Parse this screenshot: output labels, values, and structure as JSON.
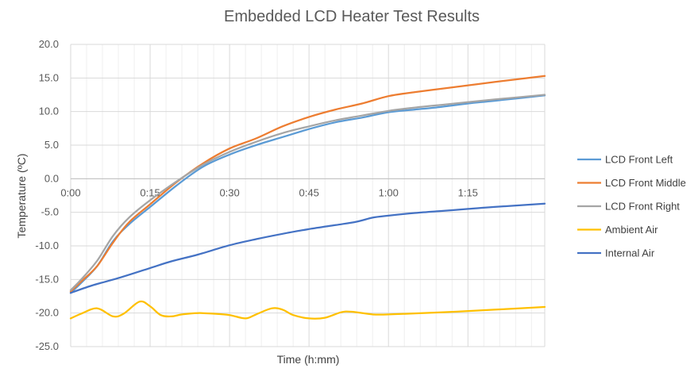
{
  "chart_data": {
    "type": "line",
    "title": "Embedded LCD Heater Test Results",
    "xlabel": "Time (h:mm)",
    "ylabel": "Temperature (ºC)",
    "ylim": [
      -25,
      20
    ],
    "xlim_minutes": [
      0,
      89.5
    ],
    "ytick_step": 5,
    "yticks": [
      "-25.0",
      "-20.0",
      "-15.0",
      "-10.0",
      "-5.0",
      "0.0",
      "5.0",
      "10.0",
      "15.0",
      "20.0"
    ],
    "xticks": [
      {
        "label": "0:00",
        "minutes": 0
      },
      {
        "label": "0:15",
        "minutes": 15
      },
      {
        "label": "0:30",
        "minutes": 30
      },
      {
        "label": "0:45",
        "minutes": 45
      },
      {
        "label": "1:00",
        "minutes": 60
      },
      {
        "label": "1:15",
        "minutes": 75
      }
    ],
    "grid": {
      "major_x": true,
      "major_y": true,
      "minor_x": true
    },
    "legend_position": "right",
    "series": [
      {
        "name": "LCD Front Left",
        "color": "#5B9BD5",
        "points": [
          [
            0,
            -17.0
          ],
          [
            2,
            -15.5
          ],
          [
            5,
            -13.0
          ],
          [
            8,
            -9.3
          ],
          [
            11,
            -6.8
          ],
          [
            15,
            -4.2
          ],
          [
            20,
            -1.0
          ],
          [
            25,
            1.8
          ],
          [
            30,
            3.6
          ],
          [
            35,
            5.0
          ],
          [
            40,
            6.2
          ],
          [
            45,
            7.4
          ],
          [
            50,
            8.4
          ],
          [
            55,
            9.1
          ],
          [
            60,
            9.9
          ],
          [
            65,
            10.3
          ],
          [
            70,
            10.7
          ],
          [
            75,
            11.2
          ],
          [
            80,
            11.6
          ],
          [
            89.5,
            12.4
          ]
        ]
      },
      {
        "name": "LCD Front Middle",
        "color": "#ED7D31",
        "points": [
          [
            0,
            -16.8
          ],
          [
            2,
            -15.3
          ],
          [
            5,
            -13.0
          ],
          [
            8,
            -9.5
          ],
          [
            11,
            -6.5
          ],
          [
            15,
            -3.8
          ],
          [
            20,
            -0.5
          ],
          [
            25,
            2.3
          ],
          [
            30,
            4.5
          ],
          [
            35,
            6.0
          ],
          [
            40,
            7.8
          ],
          [
            45,
            9.2
          ],
          [
            50,
            10.3
          ],
          [
            55,
            11.2
          ],
          [
            60,
            12.3
          ],
          [
            65,
            12.9
          ],
          [
            70,
            13.4
          ],
          [
            75,
            13.9
          ],
          [
            80,
            14.4
          ],
          [
            89.5,
            15.3
          ]
        ]
      },
      {
        "name": "LCD Front Right",
        "color": "#A5A5A5",
        "points": [
          [
            0,
            -16.6
          ],
          [
            2,
            -15.0
          ],
          [
            5,
            -12.2
          ],
          [
            8,
            -8.5
          ],
          [
            11,
            -5.8
          ],
          [
            15,
            -3.2
          ],
          [
            20,
            -0.4
          ],
          [
            25,
            2.1
          ],
          [
            30,
            4.0
          ],
          [
            35,
            5.5
          ],
          [
            40,
            6.8
          ],
          [
            45,
            7.8
          ],
          [
            50,
            8.7
          ],
          [
            55,
            9.4
          ],
          [
            60,
            10.1
          ],
          [
            65,
            10.6
          ],
          [
            70,
            11.0
          ],
          [
            75,
            11.4
          ],
          [
            80,
            11.8
          ],
          [
            89.5,
            12.5
          ]
        ]
      },
      {
        "name": "Ambient Air",
        "color": "#FFC000",
        "points": [
          [
            0,
            -20.8
          ],
          [
            2,
            -20.1
          ],
          [
            5,
            -19.3
          ],
          [
            8,
            -20.5
          ],
          [
            10,
            -20.1
          ],
          [
            13,
            -18.3
          ],
          [
            15,
            -19.0
          ],
          [
            17,
            -20.3
          ],
          [
            19,
            -20.5
          ],
          [
            21,
            -20.2
          ],
          [
            24,
            -20.0
          ],
          [
            27,
            -20.1
          ],
          [
            30,
            -20.3
          ],
          [
            33,
            -20.8
          ],
          [
            35,
            -20.2
          ],
          [
            38,
            -19.3
          ],
          [
            40,
            -19.5
          ],
          [
            42,
            -20.3
          ],
          [
            45,
            -20.8
          ],
          [
            48,
            -20.7
          ],
          [
            51,
            -19.9
          ],
          [
            53,
            -19.8
          ],
          [
            57,
            -20.2
          ],
          [
            60,
            -20.2
          ],
          [
            70,
            -19.9
          ],
          [
            80,
            -19.5
          ],
          [
            89.5,
            -19.1
          ]
        ]
      },
      {
        "name": "Internal Air",
        "color": "#4472C4",
        "points": [
          [
            0,
            -17.0
          ],
          [
            4,
            -15.9
          ],
          [
            9,
            -14.8
          ],
          [
            15,
            -13.3
          ],
          [
            19,
            -12.3
          ],
          [
            24,
            -11.3
          ],
          [
            30,
            -9.9
          ],
          [
            35,
            -9.0
          ],
          [
            40,
            -8.2
          ],
          [
            45,
            -7.5
          ],
          [
            50,
            -6.9
          ],
          [
            54,
            -6.4
          ],
          [
            57,
            -5.8
          ],
          [
            60,
            -5.5
          ],
          [
            65,
            -5.1
          ],
          [
            70,
            -4.8
          ],
          [
            75,
            -4.5
          ],
          [
            80,
            -4.2
          ],
          [
            89.5,
            -3.7
          ]
        ]
      }
    ]
  }
}
